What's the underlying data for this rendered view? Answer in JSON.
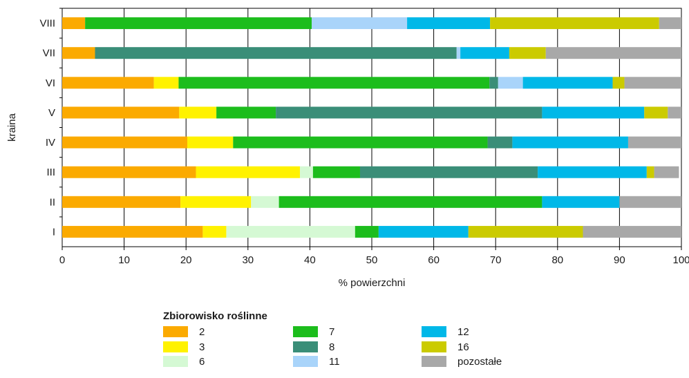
{
  "chart_data": {
    "type": "bar",
    "orientation": "horizontal",
    "stacked": true,
    "title": "",
    "xlabel": "% powierzchni",
    "ylabel": "kraina",
    "xlim": [
      0,
      100
    ],
    "xticks": [
      0,
      10,
      20,
      30,
      40,
      50,
      60,
      70,
      80,
      90,
      100
    ],
    "grid": "vertical",
    "legend_title": "Zbiorowisko roślinne",
    "legend_position": "bottom",
    "categories": [
      "VIII",
      "VII",
      "VI",
      "V",
      "IV",
      "III",
      "II",
      "I"
    ],
    "series": [
      {
        "name": "2",
        "color": "#FBAA00",
        "values": [
          3.7,
          5.3,
          14.8,
          18.9,
          20.2,
          21.6,
          19.1,
          22.7
        ]
      },
      {
        "name": "3",
        "color": "#FFF200",
        "values": [
          0,
          0,
          4.0,
          6.0,
          7.4,
          16.8,
          11.4,
          3.8
        ]
      },
      {
        "name": "6",
        "color": "#D5F9D4",
        "values": [
          0,
          0,
          0,
          0,
          0,
          2.1,
          4.5,
          20.8
        ]
      },
      {
        "name": "7",
        "color": "#1CBD1C",
        "values": [
          36.6,
          0,
          50.2,
          9.6,
          41.1,
          7.6,
          42.5,
          3.8
        ]
      },
      {
        "name": "8",
        "color": "#3A8E78",
        "values": [
          0,
          58.4,
          1.4,
          43.0,
          4.0,
          28.7,
          0,
          0
        ]
      },
      {
        "name": "11",
        "color": "#A9D4FA",
        "values": [
          15.4,
          0.6,
          4.0,
          0,
          0,
          0,
          0,
          0
        ]
      },
      {
        "name": "12",
        "color": "#00B8E8",
        "values": [
          13.4,
          7.9,
          14.5,
          16.5,
          18.7,
          17.6,
          12.5,
          14.5
        ]
      },
      {
        "name": "16",
        "color": "#CBCB00",
        "values": [
          27.3,
          5.9,
          1.9,
          3.8,
          0,
          1.2,
          0,
          18.5
        ]
      },
      {
        "name": "pozostałe",
        "color": "#A8A8A8",
        "values": [
          3.6,
          21.9,
          9.2,
          2.2,
          8.6,
          4.0,
          10.0,
          15.9
        ]
      }
    ]
  }
}
